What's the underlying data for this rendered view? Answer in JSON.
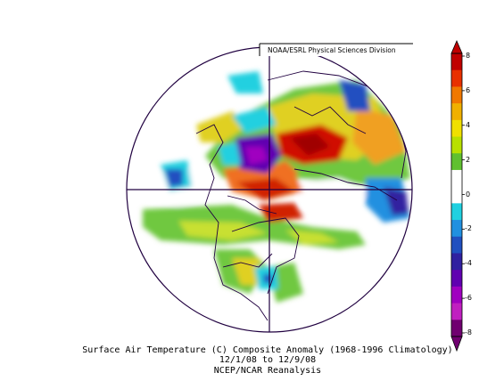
{
  "credit": "NOAA/ESRL Physical Sciences Division",
  "title_line1": "Surface Air Temperature (C) Composite Anomaly (1968-1996 Climatology)",
  "title_line2": "12/1/08  to 12/9/08",
  "title_line3": "NCEP/NCAR Reanalysis",
  "colorbar": {
    "ticks": [
      "8",
      "6",
      "4",
      "2",
      "0",
      "-2",
      "-4",
      "-6",
      "-8"
    ],
    "colors": [
      "#c00000",
      "#e83000",
      "#f07800",
      "#f0b000",
      "#f0e000",
      "#b8e000",
      "#60c030",
      "#ffffff",
      "#ffffff",
      "#20d0e0",
      "#2090e0",
      "#2050c0",
      "#3020a0",
      "#6000b0",
      "#a000c0",
      "#c020c0",
      "#700070"
    ]
  }
}
